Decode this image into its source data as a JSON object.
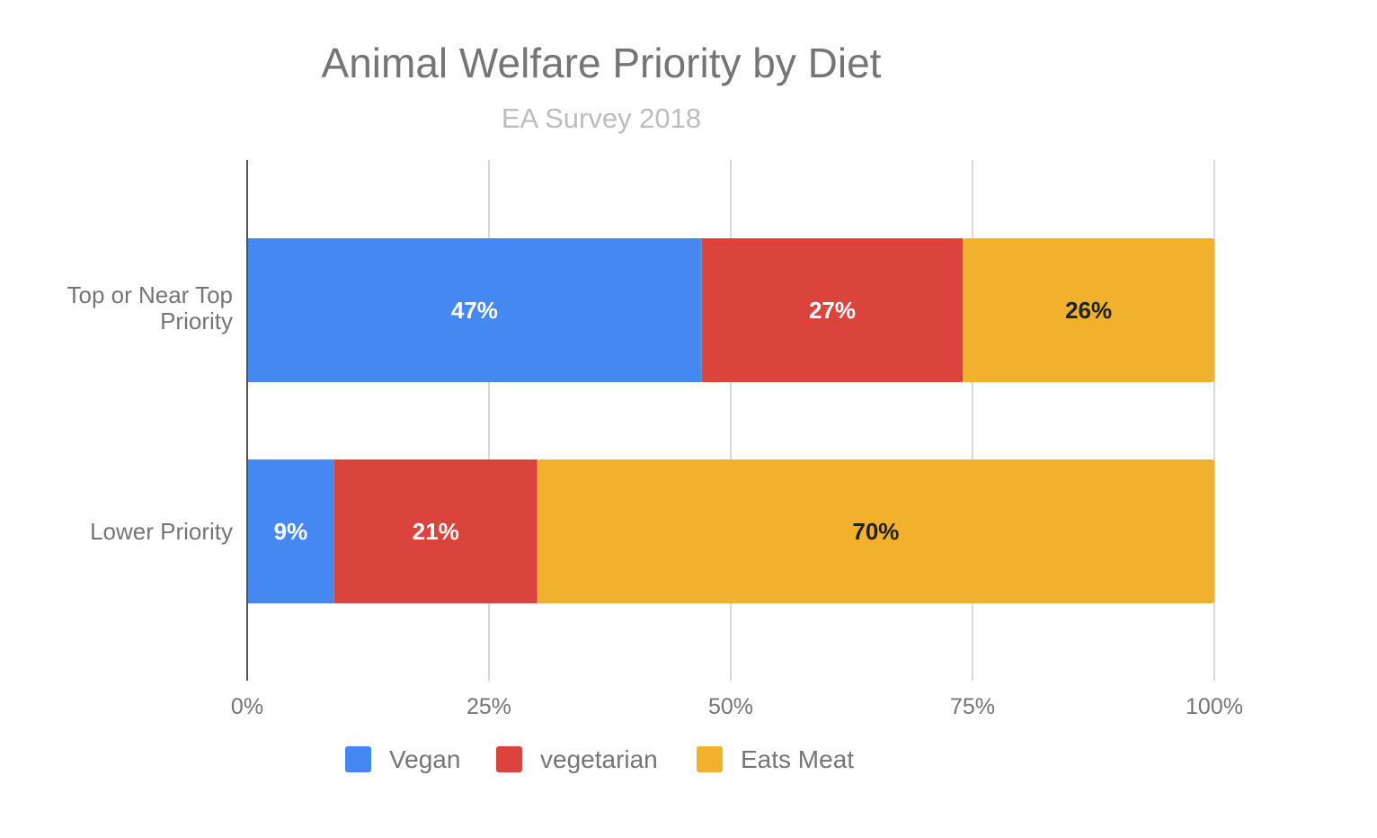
{
  "chart_data": {
    "type": "bar",
    "orientation": "horizontal",
    "stacked": "percent",
    "title": "Animal Welfare Priority by Diet",
    "subtitle": "EA Survey 2018",
    "xlabel": "",
    "ylabel": "",
    "xlim": [
      0,
      100
    ],
    "x_ticks": [
      "0%",
      "25%",
      "50%",
      "75%",
      "100%"
    ],
    "grid": true,
    "legend_position": "bottom",
    "categories": [
      "Top or Near Top Priority",
      "Lower Priority"
    ],
    "category_lines": [
      [
        "Top or Near Top",
        "Priority"
      ],
      [
        "Lower Priority"
      ]
    ],
    "series": [
      {
        "name": "Vegan",
        "color": "#4688F1",
        "label_color": "#ffffff",
        "values": [
          47,
          9
        ],
        "labels": [
          "47%",
          "9%"
        ]
      },
      {
        "name": "vegetarian",
        "color": "#DB443D",
        "label_color": "#ffffff",
        "values": [
          27,
          21
        ],
        "labels": [
          "27%",
          "21%"
        ]
      },
      {
        "name": "Eats Meat",
        "color": "#F1B12C",
        "label_color": "#222222",
        "values": [
          26,
          70
        ],
        "labels": [
          "26%",
          "70%"
        ]
      }
    ]
  }
}
